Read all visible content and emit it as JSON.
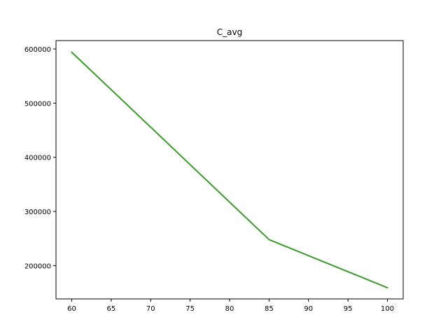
{
  "chart_data": {
    "type": "line",
    "title": "C_avg",
    "xlabel": "",
    "ylabel": "",
    "xlim": [
      58,
      102
    ],
    "ylim": [
      138500,
      615500
    ],
    "grid": false,
    "legend": "none",
    "x_ticks": [
      60,
      65,
      70,
      75,
      80,
      85,
      90,
      95,
      100
    ],
    "y_ticks": [
      200000,
      300000,
      400000,
      500000,
      600000
    ],
    "series": [
      {
        "color": "#3a9a2a",
        "x": [
          60,
          85,
          100
        ],
        "y": [
          594000,
          248000,
          159000
        ]
      }
    ]
  }
}
